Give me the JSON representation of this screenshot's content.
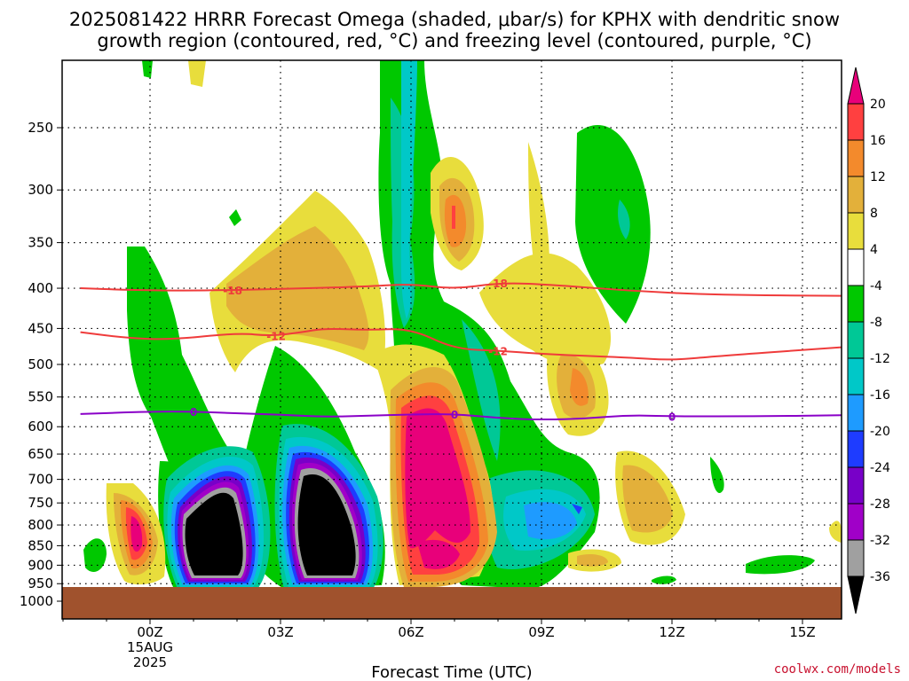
{
  "chart_data": {
    "type": "heatmap",
    "title_line1": "2025081422 HRRR Forecast Omega (shaded, μbar/s) for KPHX with dendritic snow",
    "title_line2": "growth region (contoured, red, °C) and freezing level (contoured, purple, °C)",
    "xlabel": "Forecast Time (UTC)",
    "x_ticks": [
      "00Z",
      "03Z",
      "06Z",
      "09Z",
      "12Z",
      "15Z"
    ],
    "x_date_label": [
      "15AUG",
      "2025"
    ],
    "y_ticks": [
      250,
      300,
      350,
      400,
      450,
      500,
      550,
      600,
      650,
      700,
      750,
      800,
      850,
      900,
      950,
      1000
    ],
    "y_axis": "pressure (hPa), inverted",
    "grid": true,
    "colorbar": {
      "levels": [
        20,
        16,
        12,
        8,
        4,
        -4,
        -8,
        -12,
        -16,
        -20,
        -24,
        -28,
        -32,
        -36
      ],
      "colors": [
        "#e8007a",
        "#ff4040",
        "#f38a2c",
        "#e3b03a",
        "#e8dd3c",
        "#ffffff",
        "#00c800",
        "#00c896",
        "#00c8c8",
        "#1e9bff",
        "#1e3cff",
        "#7800c8",
        "#a000c8",
        "#a0a0a0",
        "#000000"
      ]
    },
    "contours": [
      {
        "label": "-18",
        "color": "#ef3b3b",
        "points": [
          [
            -1.6,
            400
          ],
          [
            -0.5,
            402
          ],
          [
            1,
            403
          ],
          [
            3,
            401
          ],
          [
            5,
            398
          ],
          [
            6,
            395
          ],
          [
            7,
            401
          ],
          [
            8,
            394
          ],
          [
            9,
            395
          ],
          [
            11,
            403
          ],
          [
            13,
            408
          ],
          [
            16,
            409
          ]
        ]
      },
      {
        "label": "-12",
        "color": "#ef3b3b",
        "points": [
          [
            -1.6,
            455
          ],
          [
            -0.5,
            463
          ],
          [
            0.5,
            465
          ],
          [
            2,
            456
          ],
          [
            2.8,
            460
          ],
          [
            3.5,
            455
          ],
          [
            4,
            450
          ],
          [
            5,
            452
          ],
          [
            6,
            450
          ],
          [
            7,
            478
          ],
          [
            8,
            480
          ],
          [
            9,
            485
          ],
          [
            11,
            490
          ],
          [
            12,
            494
          ],
          [
            13,
            488
          ],
          [
            16,
            475
          ]
        ]
      },
      {
        "label": "0",
        "color": "#8a00c8",
        "points": [
          [
            -1.6,
            578
          ],
          [
            0,
            574
          ],
          [
            1,
            574
          ],
          [
            2,
            577
          ],
          [
            3,
            579
          ],
          [
            4,
            583
          ],
          [
            5,
            581
          ],
          [
            6,
            579
          ],
          [
            7,
            578
          ],
          [
            8,
            585
          ],
          [
            9,
            588
          ],
          [
            10,
            586
          ],
          [
            11,
            580
          ],
          [
            12,
            582
          ],
          [
            14,
            582
          ],
          [
            16,
            580
          ]
        ]
      }
    ]
  },
  "credit": "coolwx.com/models"
}
